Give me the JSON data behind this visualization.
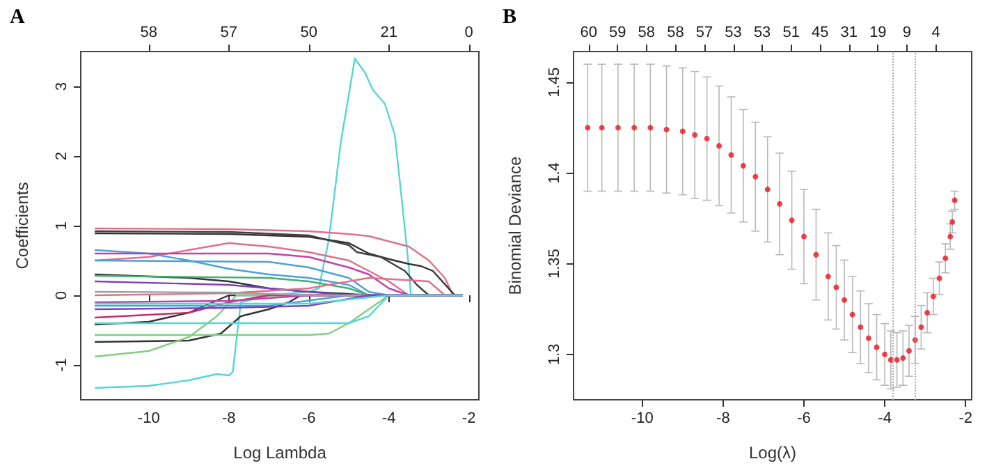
{
  "chart_data": [
    {
      "type": "line",
      "title": "A",
      "xlabel": "Log Lambda",
      "ylabel": "Coefficients",
      "xlim": [
        -11.7,
        -1.75
      ],
      "xticks": [
        -10,
        -8,
        -6,
        -4,
        -2
      ],
      "ylim": [
        -1.5,
        3.5
      ],
      "yticks": [
        -1,
        0,
        1,
        2,
        3
      ],
      "annotations": [
        "58",
        "57",
        "50",
        "21",
        "0"
      ],
      "marker": "none",
      "line_style": "solid",
      "series": [
        {
          "color": "#55d6d6",
          "x": [
            -11.35,
            -10,
            -9,
            -8.3,
            -8.0,
            -7.9,
            -7.7,
            -7,
            -6,
            -5.75,
            -5.5,
            -5.2,
            -4.85,
            -4.6,
            -4.4,
            -4.1,
            -3.85,
            -3.7,
            -3.5,
            -3.45,
            -3,
            -2.15
          ],
          "values": [
            -1.33,
            -1.3,
            -1.22,
            -1.13,
            -1.15,
            -1.1,
            -0.1,
            0,
            0.05,
            0.1,
            0.8,
            2.2,
            3.4,
            3.2,
            2.95,
            2.75,
            2.3,
            1.5,
            0.4,
            0,
            0,
            0
          ]
        },
        {
          "color": "#e0708a",
          "x": [
            -11.35,
            -8,
            -6,
            -5,
            -4.5,
            -3.5,
            -3,
            -2.6,
            -2.4,
            -2.15
          ],
          "values": [
            0.96,
            0.95,
            0.92,
            0.88,
            0.85,
            0.7,
            0.5,
            0.25,
            0,
            0
          ]
        },
        {
          "color": "#333333",
          "x": [
            -11.35,
            -8,
            -6,
            -5,
            -4.5,
            -4,
            -3.5,
            -3.2,
            -2.9,
            -2.35,
            -2.15
          ],
          "values": [
            0.89,
            0.88,
            0.84,
            0.75,
            0.6,
            0.52,
            0.45,
            0.42,
            0.35,
            0,
            0
          ]
        },
        {
          "color": "#404040",
          "x": [
            -11.35,
            -8,
            -6,
            -5,
            -4.8,
            -4.2,
            -3.6,
            -3.3,
            -3.0,
            -2.15
          ],
          "values": [
            0.92,
            0.91,
            0.86,
            0.72,
            0.62,
            0.55,
            0.35,
            0.15,
            0,
            0
          ]
        },
        {
          "color": "#e0708a",
          "x": [
            -11.35,
            -10,
            -9,
            -8,
            -7,
            -6,
            -5,
            -4.5,
            -4,
            -3.5,
            -2.15
          ],
          "values": [
            0.5,
            0.55,
            0.65,
            0.75,
            0.7,
            0.62,
            0.5,
            0.35,
            0.2,
            0,
            0
          ]
        },
        {
          "color": "#4fa0d8",
          "x": [
            -11.35,
            -10,
            -9,
            -8,
            -7,
            -6,
            -5,
            -4.5,
            -2.15
          ],
          "values": [
            0.65,
            0.6,
            0.5,
            0.38,
            0.3,
            0.25,
            0.15,
            0,
            0
          ]
        },
        {
          "color": "#c040b0",
          "x": [
            -11.35,
            -7,
            -6,
            -5,
            -4.5,
            -4,
            -3.5,
            -2.15
          ],
          "values": [
            0.6,
            0.6,
            0.55,
            0.4,
            0.3,
            0.1,
            0,
            0
          ]
        },
        {
          "color": "#4fa0d8",
          "x": [
            -11.35,
            -7,
            -6,
            -5,
            -4.5,
            -4,
            -2.15
          ],
          "values": [
            0.5,
            0.48,
            0.4,
            0.25,
            0.05,
            0,
            0
          ]
        },
        {
          "color": "#333333",
          "x": [
            -11.35,
            -9,
            -8,
            -7,
            -6,
            -5,
            -4.5,
            -2.15
          ],
          "values": [
            0.3,
            0.25,
            0.2,
            0.1,
            0.05,
            0.02,
            0,
            0
          ]
        },
        {
          "color": "#333333",
          "x": [
            -11.35,
            -10,
            -9,
            -8.2,
            -8,
            -2.15
          ],
          "values": [
            -0.42,
            -0.38,
            -0.25,
            -0.05,
            0,
            0
          ]
        },
        {
          "color": "#333333",
          "x": [
            -11.35,
            -9,
            -8.2,
            -7.7,
            -7,
            -6.5,
            -6.2,
            -2.15
          ],
          "values": [
            -0.67,
            -0.65,
            -0.55,
            -0.3,
            -0.2,
            -0.1,
            0,
            0
          ]
        },
        {
          "color": "#7fcf7f",
          "x": [
            -11.35,
            -6,
            -5.5,
            -5,
            -4.5,
            -4,
            -2.15
          ],
          "values": [
            -0.57,
            -0.57,
            -0.55,
            -0.4,
            -0.2,
            0,
            0
          ]
        },
        {
          "color": "#7fcf7f",
          "x": [
            -11.35,
            -10,
            -9,
            -8.3,
            -7.8,
            -2.15
          ],
          "values": [
            -0.88,
            -0.8,
            -0.6,
            -0.3,
            0,
            0
          ]
        },
        {
          "color": "#55d6d6",
          "x": [
            -11.35,
            -5,
            -4.5,
            -4,
            -2.15
          ],
          "values": [
            -0.4,
            -0.4,
            -0.3,
            0,
            0
          ]
        },
        {
          "color": "#c0306a",
          "x": [
            -11.35,
            -9,
            -8,
            -7,
            -2.15
          ],
          "values": [
            -0.32,
            -0.25,
            -0.1,
            0,
            0
          ]
        },
        {
          "color": "#3fb070",
          "x": [
            -11.35,
            -7,
            -6,
            -5,
            -4.5,
            -2.15
          ],
          "values": [
            0.28,
            0.25,
            0.2,
            0.1,
            0,
            0
          ]
        },
        {
          "color": "#8040c0",
          "x": [
            -11.35,
            -8,
            -6,
            -5,
            -2.15
          ],
          "values": [
            0.2,
            0.15,
            0.05,
            0,
            0
          ]
        },
        {
          "color": "#e0708a",
          "x": [
            -11.35,
            -8,
            -6,
            -4.5,
            -3,
            -2.6,
            -2.15
          ],
          "values": [
            0,
            0.03,
            0.1,
            0.25,
            0.2,
            0,
            0
          ]
        },
        {
          "color": "#4fa0d8",
          "x": [
            -11.35,
            -7,
            -5,
            -2.15
          ],
          "values": [
            -0.15,
            -0.15,
            0,
            0
          ]
        },
        {
          "color": "#c040b0",
          "x": [
            -11.35,
            -8,
            -6,
            -2.15
          ],
          "values": [
            -0.1,
            -0.08,
            0,
            0
          ]
        },
        {
          "color": "#a0a0a0",
          "x": [
            -11.35,
            -8,
            -6,
            -2.15
          ],
          "values": [
            0.05,
            0.04,
            0,
            0
          ]
        },
        {
          "color": "#8040c0",
          "x": [
            -11.35,
            -8,
            -6,
            -4.5,
            -2.15
          ],
          "values": [
            -0.2,
            -0.18,
            -0.15,
            0,
            0
          ]
        },
        {
          "color": "#55d6d6",
          "x": [
            -11.35,
            -6,
            -4,
            -2.15
          ],
          "values": [
            -0.12,
            -0.12,
            0,
            0
          ]
        }
      ]
    },
    {
      "type": "scatter",
      "title": "B",
      "xlabel": "Log(λ)",
      "ylabel": "Binomial Deviance",
      "xlim": [
        -11.7,
        -1.85
      ],
      "xticks": [
        -10,
        -8,
        -6,
        -4,
        -2
      ],
      "ylim": [
        1.275,
        1.467
      ],
      "yticks": [
        1.3,
        1.35,
        1.4,
        1.45
      ],
      "annotations": [
        "60",
        "59",
        "58",
        "58",
        "57",
        "53",
        "53",
        "51",
        "45",
        "31",
        "19",
        "9",
        "4"
      ],
      "marker": "circle",
      "ref_lines": [
        {
          "axis": "x",
          "value": -3.81,
          "color": "#aaaaaa",
          "line_style": "dotted"
        },
        {
          "axis": "x",
          "value": -3.27,
          "color": "#aaaaaa",
          "line_style": "dotted"
        }
      ],
      "series": [
        {
          "color": "#e8141c",
          "x": [
            -11.35,
            -11.0,
            -10.6,
            -10.2,
            -9.8,
            -9.4,
            -9.0,
            -8.7,
            -8.4,
            -8.1,
            -7.8,
            -7.5,
            -7.2,
            -6.9,
            -6.6,
            -6.3,
            -6.0,
            -5.7,
            -5.4,
            -5.2,
            -5.0,
            -4.8,
            -4.6,
            -4.4,
            -4.2,
            -4.0,
            -3.85,
            -3.7,
            -3.55,
            -3.4,
            -3.25,
            -3.1,
            -2.95,
            -2.8,
            -2.65,
            -2.5,
            -2.38,
            -2.33,
            -2.27
          ],
          "values": [
            1.425,
            1.425,
            1.425,
            1.425,
            1.425,
            1.424,
            1.423,
            1.421,
            1.419,
            1.415,
            1.41,
            1.404,
            1.398,
            1.391,
            1.383,
            1.374,
            1.365,
            1.355,
            1.343,
            1.337,
            1.33,
            1.322,
            1.315,
            1.309,
            1.304,
            1.3,
            1.297,
            1.297,
            1.298,
            1.302,
            1.308,
            1.315,
            1.323,
            1.332,
            1.342,
            1.353,
            1.365,
            1.373,
            1.385
          ],
          "errors": [
            0.035,
            0.035,
            0.035,
            0.035,
            0.035,
            0.035,
            0.035,
            0.035,
            0.034,
            0.033,
            0.032,
            0.031,
            0.03,
            0.029,
            0.028,
            0.027,
            0.026,
            0.025,
            0.024,
            0.023,
            0.022,
            0.021,
            0.02,
            0.019,
            0.018,
            0.017,
            0.016,
            0.015,
            0.015,
            0.014,
            0.013,
            0.012,
            0.011,
            0.01,
            0.009,
            0.008,
            0.007,
            0.006,
            0.005
          ]
        }
      ]
    }
  ]
}
